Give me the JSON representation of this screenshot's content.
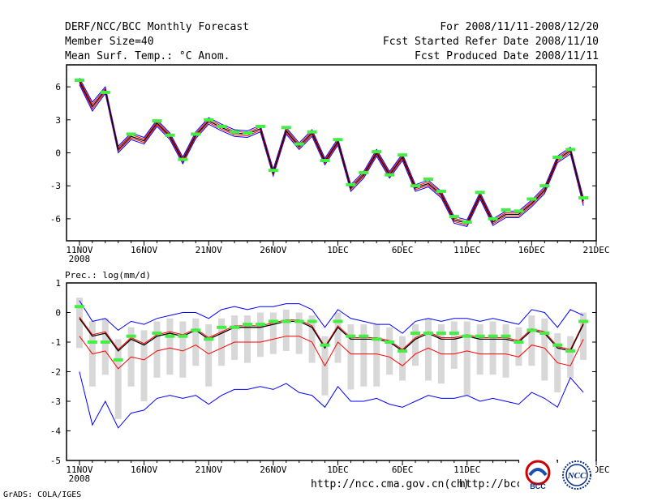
{
  "header": {
    "title": "DERF/NCC/BCC Monthly Forecast",
    "member_size": "Member Size=40",
    "variable": "Mean Surf. Temp.: °C Anom.",
    "period": "For 2008/11/11-2008/12/20",
    "started": "Fcst Started Refer Date 2008/11/10",
    "produced": "Fcst Produced Date 2008/11/11"
  },
  "footer": {
    "grads": "GrADS: COLA/IGES",
    "url1": "http://ncc.cma.gov.cn(ch)",
    "url2": "http://bcc.",
    "url2_tail": "l",
    "logo1_text": "BCC",
    "logo2_text": "NCC"
  },
  "colors": {
    "mean": "#000000",
    "spread": "#ff0000",
    "bound": "#0000ff",
    "obs": "#44ee44",
    "box": "#d8d8d8"
  },
  "chart_data": [
    {
      "type": "line",
      "title": "Mean Surf. Temp.: °C Anom.",
      "x_start_label": "11NOV",
      "x_year": "2008",
      "x_ticks": [
        {
          "day": 0,
          "label": "11NOV"
        },
        {
          "day": 5,
          "label": "16NOV"
        },
        {
          "day": 10,
          "label": "21NOV"
        },
        {
          "day": 15,
          "label": "26NOV"
        },
        {
          "day": 20,
          "label": "1DEC"
        },
        {
          "day": 25,
          "label": "6DEC"
        },
        {
          "day": 30,
          "label": "11DEC"
        },
        {
          "day": 35,
          "label": "16DEC"
        },
        {
          "day": 40,
          "label": "21DEC"
        }
      ],
      "xlim": [
        -1,
        40
      ],
      "ylim": [
        -8,
        8
      ],
      "y_ticks": [
        6,
        3,
        0,
        -3,
        -6
      ],
      "series": [
        {
          "name": "mean",
          "values": [
            6.5,
            4.2,
            5.7,
            0.3,
            1.5,
            1.1,
            2.7,
            1.5,
            -0.7,
            1.6,
            2.9,
            2.3,
            1.8,
            1.7,
            2.2,
            -1.8,
            2.0,
            0.6,
            1.8,
            -0.8,
            1.0,
            -3.2,
            -2.0,
            0.0,
            -2.0,
            -0.4,
            -3.2,
            -2.8,
            -3.8,
            -6.1,
            -6.4,
            -3.9,
            -6.3,
            -5.6,
            -5.6,
            -4.6,
            -3.4,
            -0.6,
            0.2,
            -4.4
          ]
        },
        {
          "name": "upper",
          "values": [
            6.8,
            4.6,
            6.0,
            0.6,
            1.8,
            1.4,
            3.0,
            1.8,
            -0.4,
            1.9,
            3.2,
            2.6,
            2.1,
            2.0,
            2.5,
            -1.5,
            2.3,
            0.9,
            2.1,
            -0.5,
            1.3,
            -2.9,
            -1.7,
            0.3,
            -1.7,
            -0.1,
            -2.9,
            -2.5,
            -3.5,
            -5.8,
            -6.1,
            -3.6,
            -6.0,
            -5.3,
            -5.3,
            -4.3,
            -3.1,
            -0.3,
            0.5,
            -4.1
          ]
        },
        {
          "name": "lower",
          "values": [
            6.2,
            3.8,
            5.4,
            0.0,
            1.2,
            0.8,
            2.4,
            1.2,
            -1.0,
            1.3,
            2.6,
            2.0,
            1.5,
            1.4,
            1.9,
            -2.1,
            1.7,
            0.3,
            1.5,
            -1.1,
            0.7,
            -3.5,
            -2.3,
            -0.3,
            -2.3,
            -0.7,
            -3.5,
            -3.1,
            -4.1,
            -6.4,
            -6.7,
            -4.2,
            -6.6,
            -5.9,
            -5.9,
            -4.9,
            -3.7,
            -0.9,
            -0.1,
            -4.8
          ]
        },
        {
          "name": "obs",
          "values": [
            6.6,
            null,
            5.5,
            null,
            1.7,
            null,
            2.9,
            1.6,
            -0.6,
            1.7,
            3.0,
            2.4,
            1.9,
            1.8,
            2.4,
            -1.6,
            2.3,
            0.8,
            1.9,
            -0.7,
            1.2,
            -2.9,
            -1.8,
            0.1,
            -2.0,
            -0.2,
            -3.0,
            -2.4,
            -3.5,
            -5.8,
            -6.3,
            -3.6,
            -6.0,
            -5.2,
            -5.3,
            -4.2,
            -3.0,
            -0.4,
            0.3,
            -4.1
          ]
        }
      ]
    },
    {
      "type": "line",
      "title": "Prec.: log(mm/d)",
      "x_start_label": "11NOV",
      "x_year": "2008",
      "x_ticks": [
        {
          "day": 0,
          "label": "11NOV"
        },
        {
          "day": 5,
          "label": "16NOV"
        },
        {
          "day": 10,
          "label": "21NOV"
        },
        {
          "day": 15,
          "label": "26NOV"
        },
        {
          "day": 20,
          "label": "1DEC"
        },
        {
          "day": 25,
          "label": "6DEC"
        },
        {
          "day": 30,
          "label": "11DEC"
        },
        {
          "day": 35,
          "label": "16DEC"
        },
        {
          "day": 40,
          "label": "21DEC"
        }
      ],
      "xlim": [
        -1,
        40
      ],
      "ylim": [
        -5,
        1
      ],
      "y_ticks": [
        1,
        0,
        -1,
        -2,
        -3,
        -4,
        -5
      ],
      "series": [
        {
          "name": "mean",
          "values": [
            -0.2,
            -0.8,
            -0.7,
            -1.3,
            -0.9,
            -1.1,
            -0.8,
            -0.7,
            -0.8,
            -0.6,
            -0.9,
            -0.7,
            -0.5,
            -0.5,
            -0.5,
            -0.4,
            -0.3,
            -0.3,
            -0.5,
            -1.2,
            -0.5,
            -0.9,
            -0.9,
            -0.9,
            -1.0,
            -1.3,
            -0.9,
            -0.7,
            -0.9,
            -0.9,
            -0.8,
            -0.9,
            -0.9,
            -0.9,
            -1.0,
            -0.6,
            -0.7,
            -1.2,
            -1.3,
            -0.4
          ]
        },
        {
          "name": "low",
          "values": [
            -0.8,
            -1.4,
            -1.3,
            -1.9,
            -1.5,
            -1.6,
            -1.3,
            -1.2,
            -1.3,
            -1.1,
            -1.4,
            -1.2,
            -1.0,
            -1.0,
            -1.0,
            -0.9,
            -0.8,
            -0.8,
            -1.0,
            -1.8,
            -1.0,
            -1.4,
            -1.4,
            -1.4,
            -1.5,
            -1.8,
            -1.4,
            -1.2,
            -1.4,
            -1.4,
            -1.3,
            -1.4,
            -1.4,
            -1.4,
            -1.5,
            -1.1,
            -1.2,
            -1.7,
            -1.8,
            -0.9
          ]
        },
        {
          "name": "max",
          "values": [
            0.4,
            -0.3,
            -0.2,
            -0.6,
            -0.3,
            -0.4,
            -0.2,
            -0.1,
            0.0,
            0.0,
            -0.2,
            0.1,
            0.2,
            0.1,
            0.2,
            0.2,
            0.3,
            0.3,
            0.1,
            -0.5,
            0.1,
            -0.2,
            -0.3,
            -0.4,
            -0.4,
            -0.7,
            -0.3,
            -0.2,
            -0.3,
            -0.2,
            -0.2,
            -0.3,
            -0.2,
            -0.3,
            -0.4,
            0.1,
            0.0,
            -0.5,
            0.1,
            -0.1
          ]
        },
        {
          "name": "min",
          "values": [
            -2.0,
            -3.8,
            -3.0,
            -3.9,
            -3.4,
            -3.3,
            -2.9,
            -2.8,
            -2.9,
            -2.8,
            -3.1,
            -2.8,
            -2.6,
            -2.6,
            -2.5,
            -2.6,
            -2.4,
            -2.7,
            -2.8,
            -3.2,
            -2.5,
            -3.0,
            -3.0,
            -2.9,
            -3.1,
            -3.2,
            -3.0,
            -2.8,
            -2.9,
            -2.9,
            -2.8,
            -3.0,
            -2.9,
            -3.0,
            -3.1,
            -2.7,
            -2.9,
            -3.2,
            -2.2,
            -2.7
          ]
        },
        {
          "name": "obs",
          "values": [
            0.2,
            -1.0,
            -1.0,
            -1.6,
            -0.8,
            null,
            -0.7,
            -0.8,
            -0.8,
            -0.6,
            -0.9,
            -0.5,
            -0.5,
            -0.4,
            -0.4,
            -0.3,
            -0.3,
            -0.3,
            -0.3,
            -1.1,
            -0.3,
            -0.8,
            -0.8,
            -0.9,
            -1.0,
            -1.3,
            -0.7,
            -0.7,
            -0.7,
            -0.7,
            -0.8,
            -0.8,
            -0.8,
            -0.8,
            -1.0,
            -0.6,
            -0.7,
            -1.1,
            -1.3,
            -0.3
          ]
        },
        {
          "name": "box_top",
          "values": [
            0.5,
            -0.3,
            -0.2,
            -0.9,
            -0.5,
            -0.6,
            -0.3,
            -0.2,
            -0.3,
            -0.2,
            -0.4,
            -0.2,
            -0.1,
            -0.1,
            0.0,
            0.0,
            0.1,
            0.0,
            -0.1,
            -0.8,
            0.0,
            -0.4,
            -0.4,
            -0.4,
            -0.5,
            -0.8,
            -0.4,
            -0.2,
            -0.4,
            -0.3,
            -0.3,
            -0.4,
            -0.3,
            -0.4,
            -0.5,
            -0.1,
            -0.2,
            -0.7,
            -0.8,
            0.0
          ]
        },
        {
          "name": "box_bottom",
          "values": [
            -1.2,
            -2.5,
            -2.1,
            -3.6,
            -2.5,
            -3.0,
            -2.2,
            -2.1,
            -2.2,
            -1.8,
            -2.5,
            -1.8,
            -1.6,
            -1.7,
            -1.5,
            -1.4,
            -1.3,
            -1.4,
            -1.7,
            -2.8,
            -1.7,
            -2.6,
            -2.5,
            -2.5,
            -2.1,
            -2.3,
            -1.8,
            -2.3,
            -2.4,
            -1.9,
            -2.8,
            -2.1,
            -2.1,
            -2.2,
            -1.8,
            -1.8,
            -2.3,
            -2.7,
            -2.2,
            -1.6
          ]
        }
      ]
    }
  ]
}
